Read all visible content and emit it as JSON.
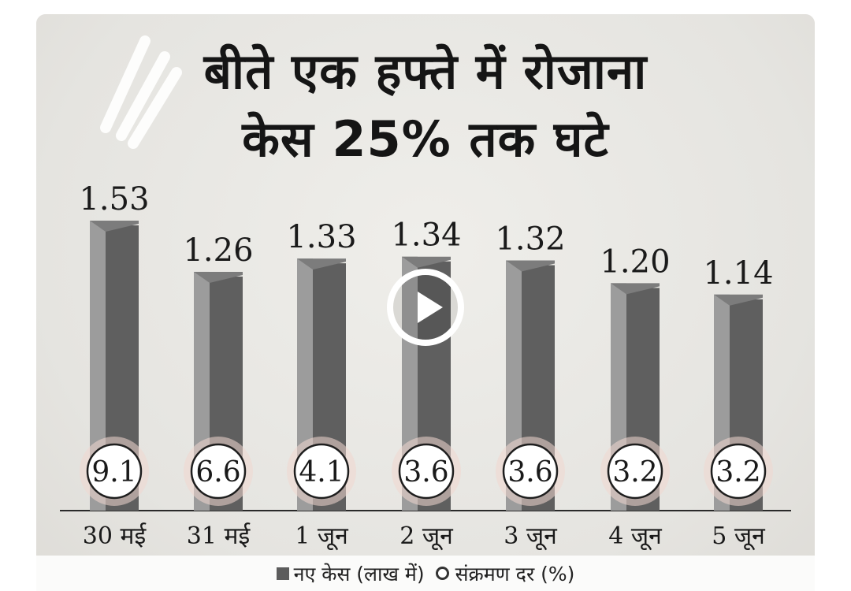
{
  "title_lines": [
    "बीते एक हफ्ते में रोजाना",
    "केस 25% तक घटे"
  ],
  "chart_data": {
    "type": "bar",
    "categories": [
      "30 मई",
      "31 मई",
      "1 जून",
      "2 जून",
      "3 जून",
      "4 जून",
      "5 जून"
    ],
    "series": [
      {
        "name": "नए केस (लाख में)",
        "values": [
          1.53,
          1.26,
          1.33,
          1.34,
          1.32,
          1.2,
          1.14
        ]
      },
      {
        "name": "संक्रमण दर (%)",
        "values": [
          9.1,
          6.6,
          4.1,
          3.6,
          3.6,
          3.2,
          3.2
        ]
      }
    ],
    "value_labels": [
      "1.53",
      "1.26",
      "1.33",
      "1.34",
      "1.32",
      "1.20",
      "1.14"
    ],
    "rate_labels": [
      "9.1",
      "6.6",
      "4.1",
      "3.6",
      "3.6",
      "3.2",
      "3.2"
    ],
    "legend": {
      "cases": "नए केस (लाख में)",
      "rate": "संक्रमण दर (%)"
    },
    "colors": {
      "bar_front": "#5f5f5f",
      "bar_side": "#9c9c9c",
      "bar_top": "#7c7c7c",
      "background": "#e9e8e4"
    }
  },
  "overlay": {
    "play_icon": "play-icon"
  }
}
